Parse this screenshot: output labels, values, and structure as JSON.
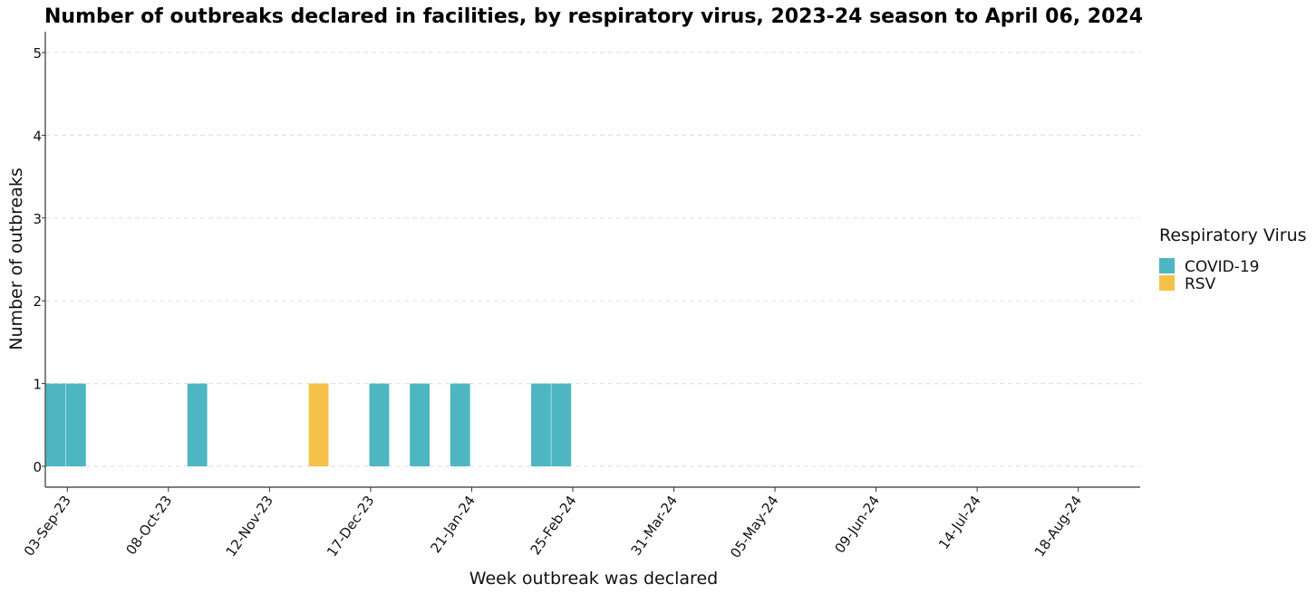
{
  "chart_data": {
    "type": "bar",
    "title": "Number of outbreaks declared in facilities, by respiratory virus, 2023-24 season to April 06, 2024",
    "xlabel": "Week outbreak was declared",
    "ylabel": "Number of outbreaks",
    "x_type": "date",
    "x_range": [
      "2023-08-27",
      "2024-08-25"
    ],
    "ylim": [
      0,
      5
    ],
    "y_ticks": [
      0,
      1,
      2,
      3,
      4,
      5
    ],
    "x_ticks": [
      {
        "date": "2023-09-03",
        "label": "03-Sep-23"
      },
      {
        "date": "2023-10-08",
        "label": "08-Oct-23"
      },
      {
        "date": "2023-11-12",
        "label": "12-Nov-23"
      },
      {
        "date": "2023-12-17",
        "label": "17-Dec-23"
      },
      {
        "date": "2024-01-21",
        "label": "21-Jan-24"
      },
      {
        "date": "2024-02-25",
        "label": "25-Feb-24"
      },
      {
        "date": "2024-03-31",
        "label": "31-Mar-24"
      },
      {
        "date": "2024-05-05",
        "label": "05-May-24"
      },
      {
        "date": "2024-06-09",
        "label": "09-Jun-24"
      },
      {
        "date": "2024-07-14",
        "label": "14-Jul-24"
      },
      {
        "date": "2024-08-18",
        "label": "18-Aug-24"
      }
    ],
    "grid": "horizontal-dashed",
    "legend": {
      "title": "Respiratory Virus",
      "position": "right"
    },
    "series": [
      {
        "name": "COVID-19",
        "color": "#4db6c1",
        "points": [
          {
            "x": "2023-08-30",
            "y": 1
          },
          {
            "x": "2023-09-06",
            "y": 1
          },
          {
            "x": "2023-10-18",
            "y": 1
          },
          {
            "x": "2023-12-20",
            "y": 1
          },
          {
            "x": "2024-01-03",
            "y": 1
          },
          {
            "x": "2024-01-17",
            "y": 1
          },
          {
            "x": "2024-02-14",
            "y": 1
          },
          {
            "x": "2024-02-21",
            "y": 1
          }
        ]
      },
      {
        "name": "RSV",
        "color": "#f5c14b",
        "points": [
          {
            "x": "2023-11-29",
            "y": 1
          }
        ]
      }
    ]
  }
}
